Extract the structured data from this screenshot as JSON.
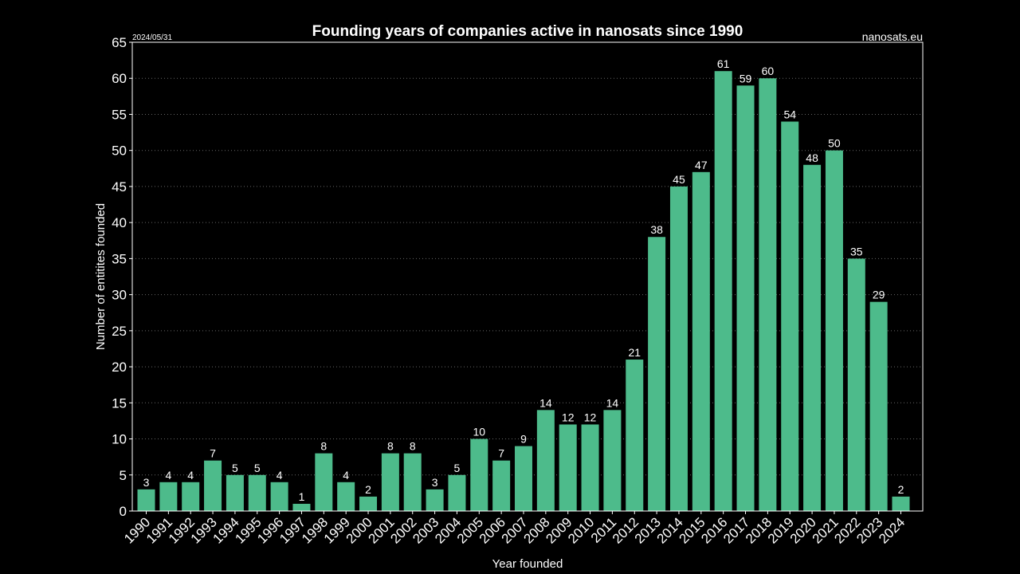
{
  "header": {
    "date": "2024/05/31",
    "source": "nanosats.eu"
  },
  "colors": {
    "background": "#000000",
    "bar": "#4dbb8b",
    "text": "#ffffff",
    "grid": "#666666"
  },
  "chart_data": {
    "type": "bar",
    "title": "Founding years of companies active in nanosats since 1990",
    "xlabel": "Year founded",
    "ylabel": "Number of entitites founded",
    "categories": [
      "1990",
      "1991",
      "1992",
      "1993",
      "1994",
      "1995",
      "1996",
      "1997",
      "1998",
      "1999",
      "2000",
      "2001",
      "2002",
      "2003",
      "2004",
      "2005",
      "2006",
      "2007",
      "2008",
      "2009",
      "2010",
      "2011",
      "2012",
      "2013",
      "2014",
      "2015",
      "2016",
      "2017",
      "2018",
      "2019",
      "2020",
      "2021",
      "2022",
      "2023",
      "2024"
    ],
    "values": [
      3,
      4,
      4,
      7,
      5,
      5,
      4,
      1,
      8,
      4,
      2,
      8,
      8,
      3,
      5,
      10,
      7,
      9,
      14,
      12,
      12,
      14,
      21,
      38,
      45,
      47,
      61,
      59,
      60,
      54,
      48,
      50,
      35,
      29,
      2
    ],
    "ylim": [
      0,
      65
    ],
    "yticks": [
      0,
      5,
      10,
      15,
      20,
      25,
      30,
      35,
      40,
      45,
      50,
      55,
      60,
      65
    ],
    "grid": true,
    "grid_axis": "y",
    "data_labels": true
  }
}
